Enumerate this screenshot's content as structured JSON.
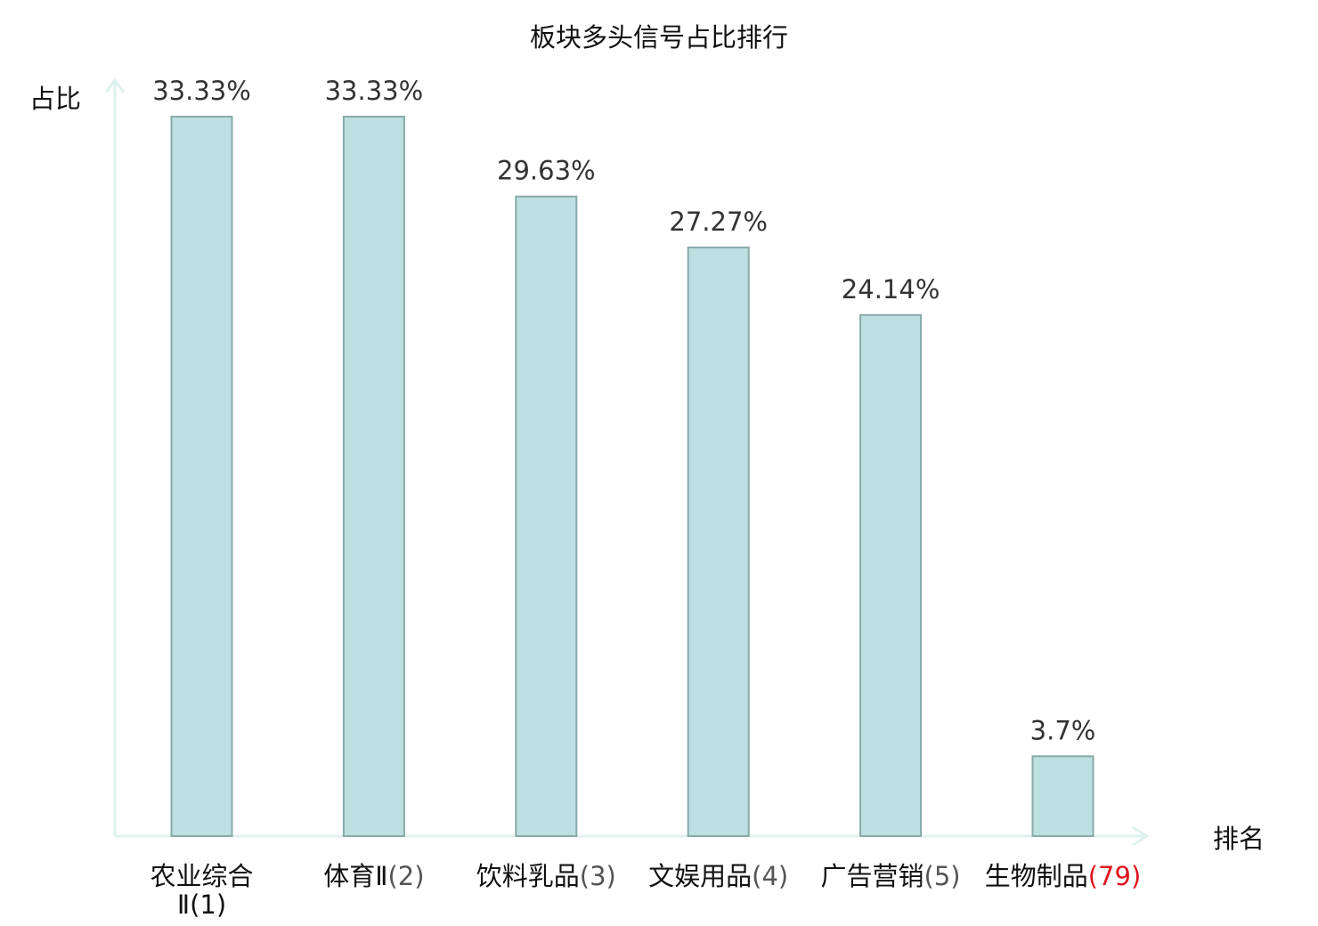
{
  "chart_data": {
    "type": "bar",
    "title": "板块多头信号占比排行",
    "ylabel": "占比",
    "xlabel": "排名",
    "categories": [
      {
        "name": "农业综合Ⅱ",
        "rank": "(1)",
        "value": 33.33,
        "label": "33.33%",
        "highlight": false
      },
      {
        "name": "体育Ⅱ",
        "rank": "(2)",
        "value": 33.33,
        "label": "33.33%",
        "highlight": false
      },
      {
        "name": "饮料乳品",
        "rank": "(3)",
        "value": 29.63,
        "label": "29.63%",
        "highlight": false
      },
      {
        "name": "文娱用品",
        "rank": "(4)",
        "value": 27.27,
        "label": "27.27%",
        "highlight": false
      },
      {
        "name": "广告营销",
        "rank": "(5)",
        "value": 24.14,
        "label": "24.14%",
        "highlight": false
      },
      {
        "name": "生物制品",
        "rank": "(79)",
        "value": 3.7,
        "label": "3.7%",
        "highlight": true
      }
    ],
    "ylim": [
      0,
      33.33
    ],
    "grid": false,
    "colors": {
      "bar_fill": "#bde0e2",
      "bar_stroke": "#8aa9a9",
      "axis": "#dff1ee",
      "highlight": "#e0141c",
      "text": "#111111"
    }
  }
}
